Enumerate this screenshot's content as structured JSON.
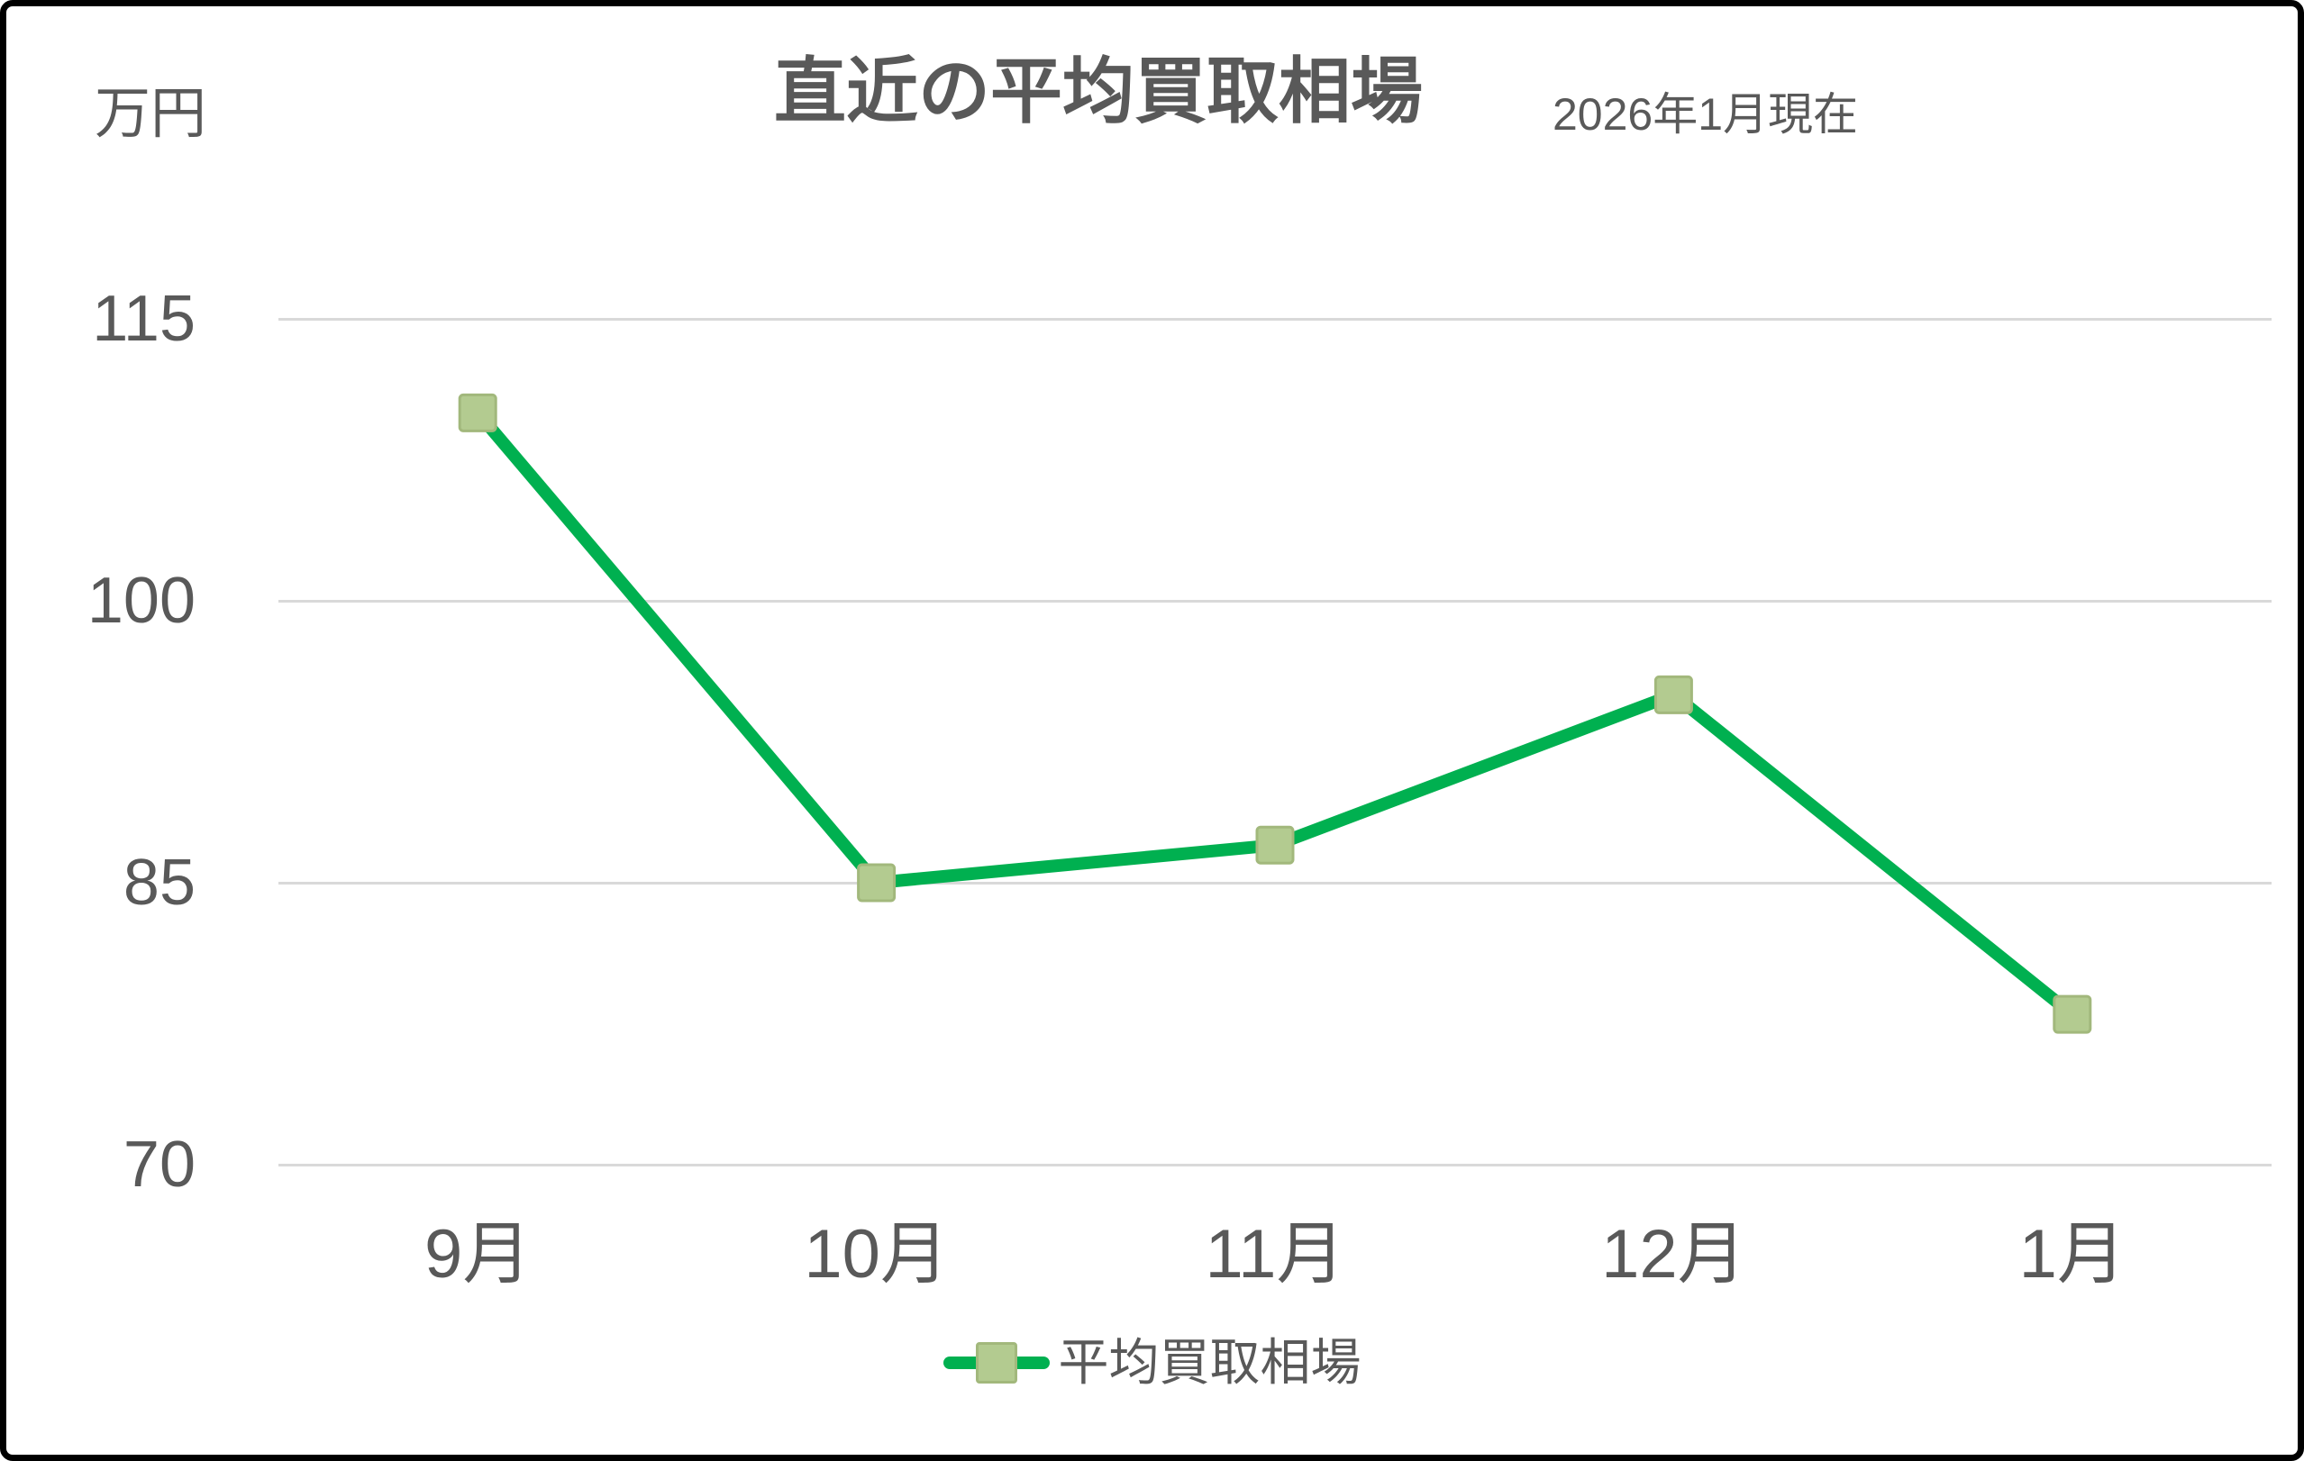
{
  "chart_data": {
    "type": "line",
    "title": "直近の平均買取相場",
    "subtitle": "2026年1月現在",
    "ylabel": "万円",
    "categories": [
      "9月",
      "10月",
      "11月",
      "12月",
      "1月"
    ],
    "series": [
      {
        "name": "平均買取相場",
        "values": [
          110,
          85,
          87,
          95,
          78
        ]
      }
    ],
    "ylim": [
      70,
      115
    ],
    "yticks": [
      115,
      100,
      85,
      70
    ],
    "grid": "horizontal-only",
    "legend_position": "bottom-center",
    "colors": {
      "line": "#00b050",
      "marker_fill": "#b3cb90",
      "marker_border": "#a2b87c",
      "gridline": "#d9d9d9",
      "text": "#595959",
      "background": "#ffffff",
      "frame": "#000000"
    }
  }
}
